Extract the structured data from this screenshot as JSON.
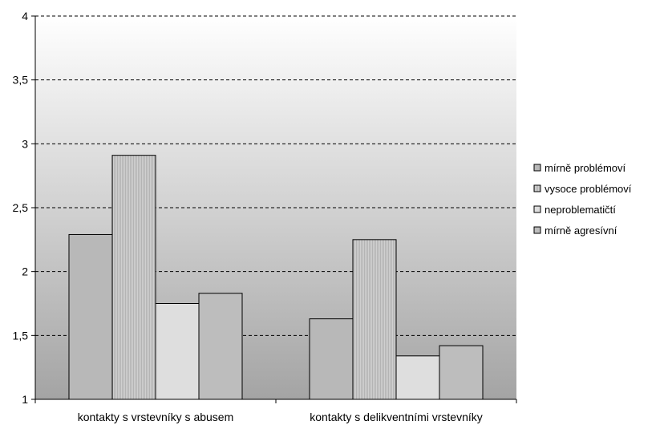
{
  "chart_data": {
    "type": "bar",
    "categories": [
      "kontakty s vrstevníky s abusem",
      "kontakty s delikventními vrstevníky"
    ],
    "series": [
      {
        "name": "mírně problémoví",
        "values": [
          2.29,
          1.63
        ],
        "color": "#b8b8b8"
      },
      {
        "name": "vysoce problémoví",
        "values": [
          2.91,
          2.25
        ],
        "color": "#c4c4c4",
        "pattern": "vertical-hatch"
      },
      {
        "name": "neproblematičtí",
        "values": [
          1.75,
          1.34
        ],
        "color": "#dedede"
      },
      {
        "name": "mírně agresívní",
        "values": [
          1.83,
          1.42
        ],
        "color": "#bdbdbd"
      }
    ],
    "yticks": [
      "1",
      "1,5",
      "2",
      "2,5",
      "3",
      "3,5",
      "4"
    ],
    "ylim": [
      1,
      4
    ],
    "ystep": 0.5,
    "grid": "dashed",
    "legend": "right"
  }
}
